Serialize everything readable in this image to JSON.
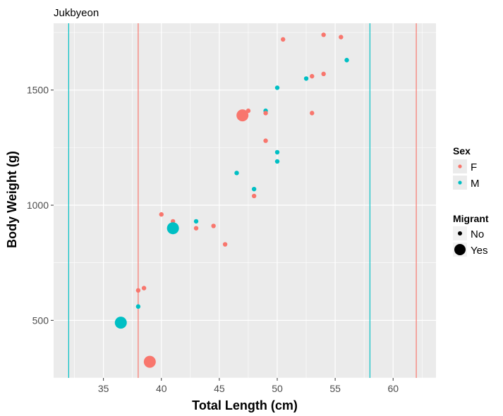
{
  "chart_data": {
    "type": "scatter",
    "title": "Jukbyeon",
    "xlabel": "Total Length (cm)",
    "ylabel": "Body Weight (g)",
    "xlim": [
      30.7,
      63.7
    ],
    "ylim": [
      250,
      1790
    ],
    "x_ticks": [
      35,
      40,
      45,
      50,
      55,
      60
    ],
    "y_ticks": [
      500,
      1000,
      1500
    ],
    "x_tick_labels": [
      "35",
      "40",
      "45",
      "50",
      "55",
      "60"
    ],
    "y_tick_labels": [
      "500",
      "1000",
      "1500"
    ],
    "grid": true,
    "legend_position": "right",
    "colors": {
      "F": "#f8766d",
      "M": "#00bfc4",
      "panel": "#ebebeb",
      "grid": "#ffffff"
    },
    "legend": {
      "sex_title": "Sex",
      "sex_items": [
        "F",
        "M"
      ],
      "migrant_title": "Migrant",
      "migrant_items": [
        "No",
        "Yes"
      ]
    },
    "vlines": [
      {
        "x": 32,
        "sex": "M"
      },
      {
        "x": 38,
        "sex": "F"
      },
      {
        "x": 58,
        "sex": "M"
      },
      {
        "x": 62,
        "sex": "F"
      }
    ],
    "points": [
      {
        "x": 50.5,
        "y": 1720,
        "sex": "F",
        "migrant": "No"
      },
      {
        "x": 54,
        "y": 1740,
        "sex": "F",
        "migrant": "No"
      },
      {
        "x": 55.5,
        "y": 1730,
        "sex": "F",
        "migrant": "No"
      },
      {
        "x": 56,
        "y": 1630,
        "sex": "M",
        "migrant": "No"
      },
      {
        "x": 53,
        "y": 1560,
        "sex": "F",
        "migrant": "No"
      },
      {
        "x": 54,
        "y": 1570,
        "sex": "F",
        "migrant": "No"
      },
      {
        "x": 52.5,
        "y": 1550,
        "sex": "M",
        "migrant": "No"
      },
      {
        "x": 50,
        "y": 1510,
        "sex": "M",
        "migrant": "No"
      },
      {
        "x": 53,
        "y": 1400,
        "sex": "F",
        "migrant": "No"
      },
      {
        "x": 47.5,
        "y": 1410,
        "sex": "F",
        "migrant": "No"
      },
      {
        "x": 47,
        "y": 1390,
        "sex": "F",
        "migrant": "Yes"
      },
      {
        "x": 49,
        "y": 1410,
        "sex": "M",
        "migrant": "No"
      },
      {
        "x": 49,
        "y": 1400,
        "sex": "F",
        "migrant": "No"
      },
      {
        "x": 49,
        "y": 1280,
        "sex": "F",
        "migrant": "No"
      },
      {
        "x": 50,
        "y": 1230,
        "sex": "M",
        "migrant": "No"
      },
      {
        "x": 50,
        "y": 1190,
        "sex": "M",
        "migrant": "No"
      },
      {
        "x": 46.5,
        "y": 1140,
        "sex": "M",
        "migrant": "No"
      },
      {
        "x": 48,
        "y": 1070,
        "sex": "M",
        "migrant": "No"
      },
      {
        "x": 48,
        "y": 1040,
        "sex": "F",
        "migrant": "No"
      },
      {
        "x": 40,
        "y": 960,
        "sex": "F",
        "migrant": "No"
      },
      {
        "x": 41,
        "y": 930,
        "sex": "F",
        "migrant": "No"
      },
      {
        "x": 43,
        "y": 930,
        "sex": "M",
        "migrant": "No"
      },
      {
        "x": 41,
        "y": 900,
        "sex": "M",
        "migrant": "Yes"
      },
      {
        "x": 43,
        "y": 900,
        "sex": "F",
        "migrant": "No"
      },
      {
        "x": 44.5,
        "y": 910,
        "sex": "F",
        "migrant": "No"
      },
      {
        "x": 45.5,
        "y": 830,
        "sex": "F",
        "migrant": "No"
      },
      {
        "x": 38,
        "y": 630,
        "sex": "F",
        "migrant": "No"
      },
      {
        "x": 38.5,
        "y": 640,
        "sex": "F",
        "migrant": "No"
      },
      {
        "x": 38,
        "y": 560,
        "sex": "M",
        "migrant": "No"
      },
      {
        "x": 36.5,
        "y": 490,
        "sex": "M",
        "migrant": "Yes"
      },
      {
        "x": 39,
        "y": 320,
        "sex": "F",
        "migrant": "Yes"
      }
    ]
  }
}
